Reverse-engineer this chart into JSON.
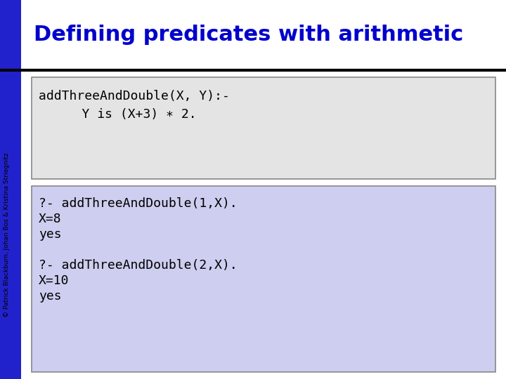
{
  "title": "Defining predicates with arithmetic",
  "title_color": "#0000CC",
  "title_fontsize": 22,
  "bg_color": "#FFFFFF",
  "left_bar_color": "#2222CC",
  "header_line_color": "#000000",
  "box1_text_line1": "addThreeAndDouble(X, Y):-",
  "box1_text_line2": "    Y is (X+3) ∗ 2.",
  "box1_bg": "#E4E4E4",
  "box1_border": "#888888",
  "box2_lines": [
    "?- addThreeAndDouble(1,X).",
    "X=8",
    "yes",
    "",
    "?- addThreeAndDouble(2,X).",
    "X=10",
    "yes"
  ],
  "box2_bg": "#CECEF0",
  "box2_border": "#888888",
  "code_fontsize": 13,
  "sidebar_text": "© Patrick Blackburn, Johan Bos & Kristina Striegnitz",
  "sidebar_fontsize": 6.5
}
